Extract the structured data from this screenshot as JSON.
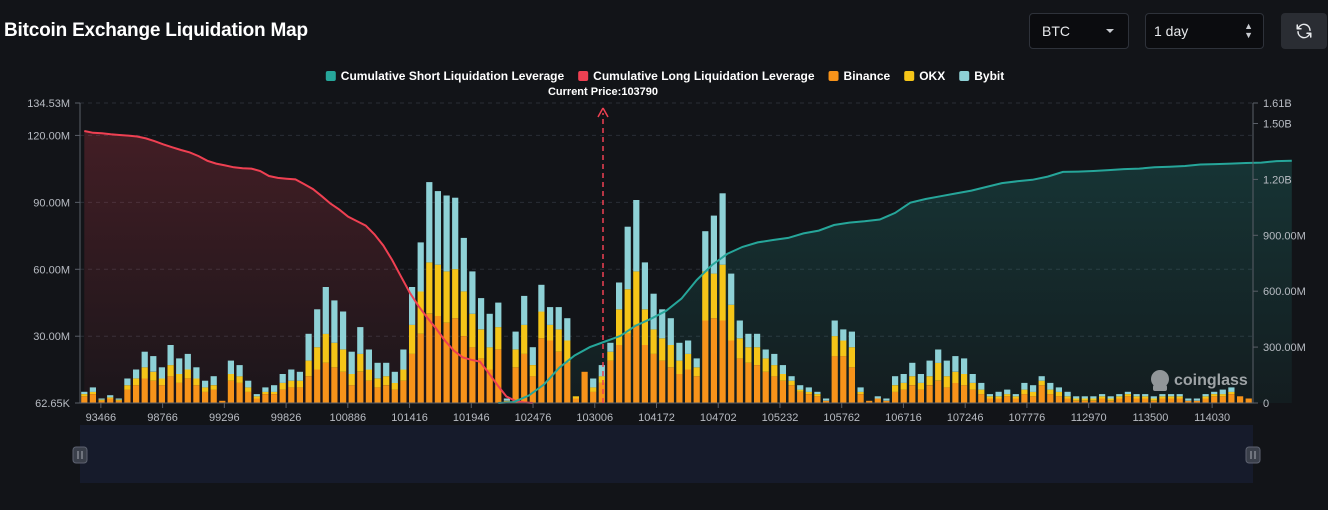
{
  "page": {
    "title": "Bitcoin Exchange Liquidation Map"
  },
  "controls": {
    "asset": {
      "value": "BTC",
      "icon": "chevron-down-icon"
    },
    "period": {
      "value": "1 day",
      "icon": "up-down-arrows-icon"
    },
    "refresh": {
      "icon": "refresh-icon"
    }
  },
  "colors": {
    "background": "#121418",
    "binance": "#f7931a",
    "okx": "#f5c518",
    "bybit": "#8ed1d6",
    "cumShort": "#26a69a",
    "cumLong": "#ef4052",
    "currentPrice": "#ef4052"
  },
  "watermark": "coinglass",
  "chart_data": {
    "type": "bar",
    "title": "Bitcoin Exchange Liquidation Map",
    "legend": [
      {
        "key": "cumShort",
        "label": "Cumulative Short Liquidation Leverage"
      },
      {
        "key": "cumLong",
        "label": "Cumulative Long Liquidation Leverage"
      },
      {
        "key": "binance",
        "label": "Binance"
      },
      {
        "key": "okx",
        "label": "OKX"
      },
      {
        "key": "bybit",
        "label": "Bybit"
      }
    ],
    "legend_position": "top-center",
    "current_price": {
      "label": "Current Price:103790",
      "value": 103790
    },
    "x_tick_labels": [
      "93466",
      "98766",
      "99296",
      "99826",
      "100886",
      "101416",
      "101946",
      "102476",
      "103006",
      "104172",
      "104702",
      "105232",
      "105762",
      "106716",
      "107246",
      "107776",
      "112970",
      "113500",
      "114030"
    ],
    "left_axis": {
      "min": 62650,
      "max": 134530000,
      "ticks": [
        "62.65K",
        "30.00M",
        "60.00M",
        "90.00M",
        "120.00M",
        "134.53M"
      ],
      "tick_values": [
        62650,
        30000000,
        60000000,
        90000000,
        120000000,
        134530000
      ]
    },
    "right_axis": {
      "min": 0,
      "max": 1610000000,
      "ticks": [
        "0",
        "300.00M",
        "600.00M",
        "900.00M",
        "1.20B",
        "1.50B",
        "1.61B"
      ],
      "tick_values": [
        0,
        300000000,
        600000000,
        900000000,
        1200000000,
        1500000000,
        1610000000
      ]
    },
    "bar_units": "M",
    "bars": [
      [
        3,
        1,
        1
      ],
      [
        4,
        1,
        2
      ],
      [
        1,
        0.5,
        0.5
      ],
      [
        2,
        0.5,
        1
      ],
      [
        1,
        0.5,
        0.5
      ],
      [
        6,
        2,
        3
      ],
      [
        8,
        3,
        4
      ],
      [
        11,
        5,
        7
      ],
      [
        10,
        4,
        7
      ],
      [
        8,
        3,
        5
      ],
      [
        12,
        5,
        9
      ],
      [
        9,
        4,
        7
      ],
      [
        11,
        4,
        7
      ],
      [
        8,
        3,
        5
      ],
      [
        5,
        2,
        3
      ],
      [
        6,
        2,
        4
      ],
      [
        1,
        0,
        0
      ],
      [
        10,
        3,
        6
      ],
      [
        9,
        3,
        5
      ],
      [
        5,
        2,
        3
      ],
      [
        2,
        1,
        1
      ],
      [
        4,
        1,
        2
      ],
      [
        4,
        1,
        3
      ],
      [
        6,
        3,
        4
      ],
      [
        7,
        3,
        5
      ],
      [
        7,
        3,
        4
      ],
      [
        12,
        7,
        12
      ],
      [
        15,
        10,
        17
      ],
      [
        18,
        13,
        21
      ],
      [
        16,
        11,
        19
      ],
      [
        14,
        10,
        17
      ],
      [
        8,
        5,
        10
      ],
      [
        14,
        8,
        12
      ],
      [
        10,
        5,
        9
      ],
      [
        7,
        4,
        7
      ],
      [
        8,
        4,
        6
      ],
      [
        6,
        3,
        5
      ],
      [
        10,
        5,
        9
      ],
      [
        22,
        13,
        17
      ],
      [
        31,
        19,
        22
      ],
      [
        40,
        23,
        36
      ],
      [
        39,
        23,
        33
      ],
      [
        36,
        23,
        34
      ],
      [
        38,
        22,
        32
      ],
      [
        30,
        20,
        24
      ],
      [
        25,
        15,
        19
      ],
      [
        20,
        13,
        14
      ],
      [
        15,
        10,
        15
      ],
      [
        24,
        10,
        11
      ],
      [
        1,
        0,
        1
      ],
      [
        16,
        8,
        8
      ],
      [
        22,
        13,
        13
      ],
      [
        12,
        5,
        8
      ],
      [
        29,
        12,
        12
      ],
      [
        28,
        7,
        8
      ],
      [
        23,
        10,
        10
      ],
      [
        18,
        10,
        10
      ],
      [
        2,
        1,
        0
      ],
      [
        14,
        0,
        0
      ],
      [
        5,
        2,
        4
      ],
      [
        9,
        3,
        5
      ],
      [
        19,
        4,
        4
      ],
      [
        26,
        16,
        12
      ],
      [
        31,
        20,
        28
      ],
      [
        35,
        24,
        32
      ],
      [
        26,
        16,
        21
      ],
      [
        22,
        11,
        16
      ],
      [
        19,
        10,
        13
      ],
      [
        16,
        10,
        12
      ],
      [
        13,
        6,
        8
      ],
      [
        15,
        7,
        6
      ],
      [
        12,
        4,
        4
      ],
      [
        37,
        22,
        18
      ],
      [
        38,
        20,
        26
      ],
      [
        37,
        25,
        32
      ],
      [
        28,
        16,
        14
      ],
      [
        20,
        9,
        8
      ],
      [
        18,
        7,
        6
      ],
      [
        17,
        8,
        6
      ],
      [
        14,
        6,
        4
      ],
      [
        12,
        5,
        5
      ],
      [
        10,
        3,
        4
      ],
      [
        8,
        2,
        2
      ],
      [
        5,
        1,
        2
      ],
      [
        4,
        1,
        2
      ],
      [
        3,
        1,
        1
      ],
      [
        1,
        0,
        1
      ],
      [
        21,
        9,
        7
      ],
      [
        21,
        7,
        5
      ],
      [
        16,
        9,
        7
      ],
      [
        4,
        1,
        2
      ],
      [
        1,
        0,
        0
      ],
      [
        2,
        0,
        1
      ],
      [
        1,
        0,
        1
      ],
      [
        5,
        3,
        4
      ],
      [
        6,
        3,
        4
      ],
      [
        8,
        4,
        6
      ],
      [
        6,
        3,
        4
      ],
      [
        8,
        4,
        7
      ],
      [
        10,
        8,
        6
      ],
      [
        7,
        5,
        7
      ],
      [
        9,
        5,
        7
      ],
      [
        8,
        5,
        7
      ],
      [
        6,
        3,
        4
      ],
      [
        4,
        2,
        3
      ],
      [
        2,
        1,
        1
      ],
      [
        2,
        1,
        2
      ],
      [
        3,
        1,
        2
      ],
      [
        2,
        1,
        1
      ],
      [
        4,
        2,
        3
      ],
      [
        3,
        2,
        3
      ],
      [
        8,
        2,
        2
      ],
      [
        4,
        2,
        3
      ],
      [
        3,
        2,
        2
      ],
      [
        2,
        1,
        2
      ],
      [
        1,
        1,
        1
      ],
      [
        1,
        1,
        1
      ],
      [
        1,
        1,
        1
      ],
      [
        2,
        1,
        1
      ],
      [
        1,
        1,
        1
      ],
      [
        2,
        1,
        1
      ],
      [
        3,
        1,
        1
      ],
      [
        2,
        1,
        1
      ],
      [
        2,
        1,
        1
      ],
      [
        1,
        1,
        1
      ],
      [
        2,
        1,
        1
      ],
      [
        2,
        1,
        1
      ],
      [
        2,
        1,
        1
      ],
      [
        1,
        0,
        1
      ],
      [
        1,
        0,
        1
      ],
      [
        2,
        1,
        1
      ],
      [
        3,
        1,
        1
      ],
      [
        3,
        1,
        2
      ],
      [
        4,
        1,
        2
      ],
      [
        3,
        0,
        0
      ],
      [
        2,
        0,
        0
      ]
    ],
    "cumulative_long": {
      "units": "M",
      "values": [
        1460,
        1450,
        1448,
        1442,
        1438,
        1435,
        1430,
        1420,
        1405,
        1388,
        1372,
        1358,
        1345,
        1325,
        1300,
        1285,
        1275,
        1265,
        1260,
        1258,
        1245,
        1218,
        1208,
        1204,
        1200,
        1175,
        1148,
        1110,
        1070,
        1038,
        1000,
        976,
        952,
        905,
        845,
        768,
        680,
        593,
        520,
        458,
        400,
        335,
        282,
        245,
        232,
        222,
        160,
        95,
        35,
        12,
        3,
        0
      ],
      "start_index": 0,
      "end_index": 52
    },
    "cumulative_short": {
      "units": "M",
      "values": [
        0,
        5,
        40,
        100,
        190,
        255,
        300,
        330,
        360,
        415,
        452,
        495,
        560,
        660,
        740,
        800,
        838,
        862,
        875,
        886,
        910,
        925,
        955,
        968,
        975,
        985,
        1020,
        1075,
        1095,
        1110,
        1125,
        1140,
        1160,
        1180,
        1190,
        1198,
        1215,
        1240,
        1242,
        1245,
        1250,
        1255,
        1258,
        1265,
        1268,
        1272,
        1280,
        1282,
        1285,
        1288,
        1290,
        1298,
        1300
      ],
      "start_index": 48,
      "end_index": 140
    }
  }
}
